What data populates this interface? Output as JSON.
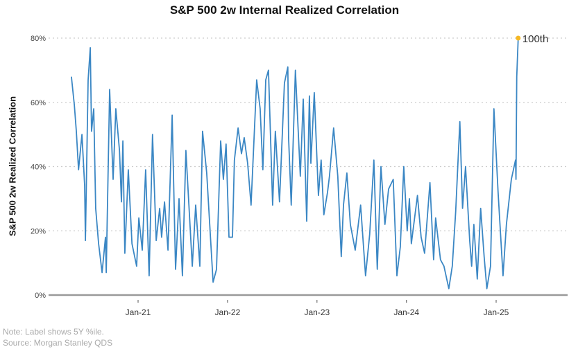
{
  "chart_data": {
    "type": "line",
    "title": "S&P 500 2w Internal Realized Correlation",
    "ylabel": "S&P 500 2w Realized Correlation",
    "xlabel": "",
    "ylim": [
      0,
      80
    ],
    "yticks": [
      0,
      20,
      40,
      60,
      80
    ],
    "ytick_labels": [
      "0%",
      "20%",
      "40%",
      "60%",
      "80%"
    ],
    "xticks": [
      "2021-01-01",
      "2022-01-01",
      "2023-01-01",
      "2024-01-01",
      "2025-01-01"
    ],
    "xtick_labels": [
      "Jan-21",
      "Jan-22",
      "Jan-23",
      "Jan-24",
      "Jan-25"
    ],
    "grid": "horizontal dotted",
    "line_color": "#3b87c4",
    "highlight_color": "#f5b825",
    "annotation": {
      "date": "2025-04-01",
      "value": 80,
      "label": "100th"
    },
    "series": [
      {
        "dates": [
          "2020-04-04",
          "2020-04-16",
          "2020-04-24",
          "2020-05-03",
          "2020-05-17",
          "2020-05-28",
          "2020-05-31",
          "2020-06-11",
          "2020-06-20",
          "2020-06-25",
          "2020-07-04",
          "2020-07-12",
          "2020-07-24",
          "2020-08-07",
          "2020-08-21",
          "2020-08-24",
          "2020-09-07",
          "2020-09-21",
          "2020-10-02",
          "2020-10-17",
          "2020-10-25",
          "2020-10-31",
          "2020-11-08",
          "2020-11-22",
          "2020-12-07",
          "2020-12-26",
          "2021-01-04",
          "2021-01-18",
          "2021-02-01",
          "2021-02-15",
          "2021-03-01",
          "2021-03-16",
          "2021-03-30",
          "2021-04-07",
          "2021-04-19",
          "2021-05-03",
          "2021-05-20",
          "2021-06-03",
          "2021-06-17",
          "2021-07-01",
          "2021-07-15",
          "2021-08-10",
          "2021-08-24",
          "2021-09-10",
          "2021-09-21",
          "2021-10-08",
          "2021-11-03",
          "2021-11-17",
          "2021-12-04",
          "2021-12-15",
          "2021-12-26",
          "2022-01-07",
          "2022-01-21",
          "2022-01-29",
          "2022-02-13",
          "2022-02-27",
          "2022-03-10",
          "2022-03-24",
          "2022-04-07",
          "2022-04-30",
          "2022-05-14",
          "2022-05-25",
          "2022-06-06",
          "2022-06-17",
          "2022-07-04",
          "2022-07-15",
          "2022-08-01",
          "2022-08-21",
          "2022-09-04",
          "2022-09-07",
          "2022-09-18",
          "2022-10-05",
          "2022-10-25",
          "2022-11-06",
          "2022-11-20",
          "2022-12-01",
          "2022-12-07",
          "2022-12-21",
          "2023-01-07",
          "2023-01-18",
          "2023-01-29",
          "2023-02-13",
          "2023-02-21",
          "2023-03-10",
          "2023-03-27",
          "2023-04-10",
          "2023-04-19",
          "2023-05-03",
          "2023-05-17",
          "2023-06-06",
          "2023-06-28",
          "2023-07-18",
          "2023-08-04",
          "2023-08-21",
          "2023-09-04",
          "2023-09-19",
          "2023-10-05",
          "2023-10-20",
          "2023-11-08",
          "2023-11-23",
          "2023-12-07",
          "2023-12-21",
          "2024-01-04",
          "2024-01-13",
          "2024-01-21",
          "2024-02-15",
          "2024-03-01",
          "2024-03-15",
          "2024-04-06",
          "2024-04-21",
          "2024-04-29",
          "2024-05-19",
          "2024-06-02",
          "2024-06-22",
          "2024-07-06",
          "2024-07-20",
          "2024-08-06",
          "2024-08-17",
          "2024-08-29",
          "2024-09-15",
          "2024-09-23",
          "2024-10-02",
          "2024-10-16",
          "2024-10-30",
          "2024-11-13",
          "2024-11-24",
          "2024-12-09",
          "2024-12-23",
          "2025-01-09",
          "2025-01-29",
          "2025-02-12",
          "2025-03-04",
          "2025-03-21",
          "2025-03-23",
          "2025-03-26",
          "2025-04-01"
        ],
        "values": [
          68,
          59,
          51,
          39,
          50,
          34,
          17,
          67,
          77,
          51,
          58,
          27,
          16,
          7,
          18,
          7,
          64,
          36,
          58,
          45,
          29,
          48,
          13,
          39,
          16,
          9,
          24,
          14,
          39,
          6,
          50,
          17,
          27,
          18,
          29,
          14,
          56,
          8,
          30,
          6,
          45,
          9,
          28,
          9,
          51,
          38,
          4,
          8,
          48,
          36,
          47,
          18,
          18,
          42,
          52,
          44,
          49,
          41,
          28,
          67,
          58,
          39,
          67,
          70,
          28,
          51,
          29,
          66,
          71,
          49,
          28,
          70,
          37,
          61,
          23,
          62,
          41,
          63,
          31,
          42,
          25,
          32,
          37,
          52,
          37,
          12,
          28,
          38,
          22,
          14,
          28,
          6,
          19,
          42,
          8,
          40,
          22,
          33,
          36,
          6,
          15,
          40,
          20,
          30,
          16,
          31,
          18,
          13,
          35,
          11,
          24,
          11,
          9,
          2,
          9,
          26,
          54,
          27,
          40,
          17,
          9,
          22,
          5,
          27,
          12,
          2,
          9,
          58,
          32,
          6,
          22,
          36,
          42,
          36,
          68,
          80
        ]
      }
    ]
  },
  "notes": {
    "note": "Note: Label shows 5Y %ile.",
    "source": "Source: Morgan Stanley QDS"
  }
}
